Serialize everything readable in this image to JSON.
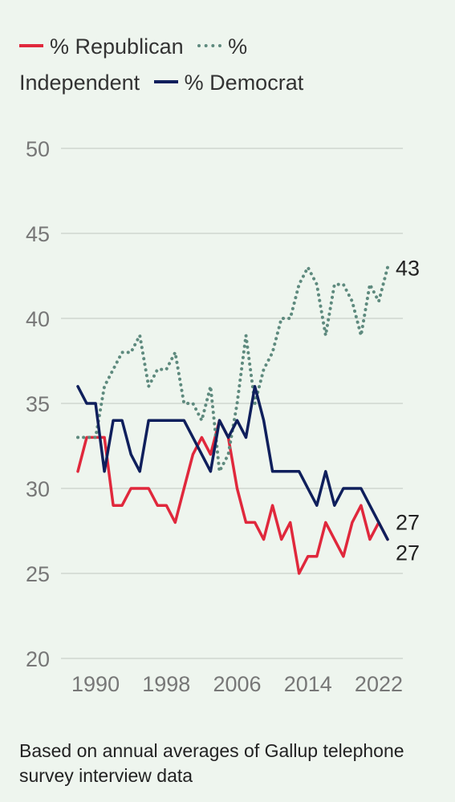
{
  "chart_data": {
    "type": "line",
    "x": [
      1988,
      1989,
      1990,
      1991,
      1992,
      1993,
      1994,
      1995,
      1996,
      1997,
      1998,
      1999,
      2000,
      2001,
      2002,
      2003,
      2004,
      2005,
      2006,
      2007,
      2008,
      2009,
      2010,
      2011,
      2012,
      2013,
      2014,
      2015,
      2016,
      2017,
      2018,
      2019,
      2020,
      2021,
      2022,
      2023
    ],
    "series": [
      {
        "name": "% Republican",
        "color": "#e0283c",
        "style": "solid",
        "values": [
          31,
          33,
          33,
          33,
          29,
          29,
          30,
          30,
          30,
          29,
          29,
          28,
          30,
          32,
          33,
          32,
          34,
          33,
          30,
          28,
          28,
          27,
          29,
          27,
          28,
          25,
          26,
          26,
          28,
          27,
          26,
          28,
          29,
          27,
          28,
          27
        ]
      },
      {
        "name": "% Independent",
        "color": "#5e8a7e",
        "style": "dotted",
        "values": [
          33,
          33,
          33,
          36,
          37,
          38,
          38,
          39,
          36,
          37,
          37,
          38,
          35,
          35,
          34,
          36,
          31,
          32,
          35,
          39,
          35,
          37,
          38,
          40,
          40,
          42,
          43,
          42,
          39,
          42,
          42,
          41,
          39,
          42,
          41,
          43
        ]
      },
      {
        "name": "% Democrat",
        "color": "#0f1f5c",
        "style": "solid",
        "values": [
          36,
          35,
          35,
          31,
          34,
          34,
          32,
          31,
          34,
          34,
          34,
          34,
          34,
          33,
          32,
          31,
          34,
          33,
          34,
          33,
          36,
          34,
          31,
          31,
          31,
          31,
          30,
          29,
          31,
          29,
          30,
          30,
          30,
          29,
          28,
          27
        ]
      }
    ],
    "end_labels": [
      "43",
      "27",
      "27"
    ],
    "x_ticks": [
      "1990",
      "1998",
      "2006",
      "2014",
      "2022"
    ],
    "y_ticks": [
      "20",
      "25",
      "30",
      "35",
      "40",
      "45",
      "50"
    ],
    "ylim": [
      20,
      50
    ],
    "xlim": [
      1988,
      2023
    ],
    "grid": true,
    "legend_placement": "top"
  },
  "legend": {
    "republican": "% Republican",
    "independent_a": "%",
    "independent_b": "Independent",
    "democrat": "% Democrat"
  },
  "caption": "Based on annual averages of Gallup telephone survey interview data"
}
